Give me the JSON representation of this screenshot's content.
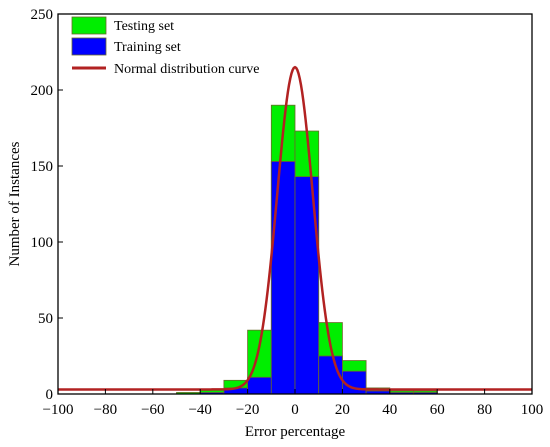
{
  "chart_data": {
    "type": "bar",
    "xlabel": "Error percentage",
    "ylabel": "Number of Instances",
    "xlim": [
      -100,
      100
    ],
    "ylim": [
      0,
      250
    ],
    "xticks": [
      -100,
      -80,
      -60,
      -40,
      -20,
      0,
      20,
      40,
      60,
      80,
      100
    ],
    "yticks": [
      0,
      50,
      100,
      150,
      200,
      250
    ],
    "bin_width": 10,
    "legend_position": "top-left",
    "colors": {
      "testing": "#00ee00",
      "training": "#0000ff",
      "curve": "#b22222",
      "bar_edge": "#6a6a2a"
    },
    "series": [
      {
        "name": "Testing set",
        "bin_starts": [
          -50,
          -40,
          -30,
          -20,
          -10,
          0,
          10,
          20,
          30,
          40,
          50
        ],
        "values": [
          1,
          3,
          9,
          42,
          190,
          173,
          47,
          22,
          4,
          2,
          2
        ]
      },
      {
        "name": "Training set",
        "bin_starts": [
          -50,
          -40,
          -30,
          -20,
          -10,
          0,
          10,
          20,
          30,
          40,
          50
        ],
        "values": [
          0,
          1,
          4,
          11,
          153,
          143,
          25,
          15,
          2,
          1,
          1
        ]
      }
    ],
    "curve": {
      "name": "Normal distribution curve",
      "mean": 0,
      "peak": 215,
      "sigma": 7.5,
      "baseline": 3
    },
    "legend": [
      "Testing set",
      "Training set",
      "Normal distribution curve"
    ]
  }
}
